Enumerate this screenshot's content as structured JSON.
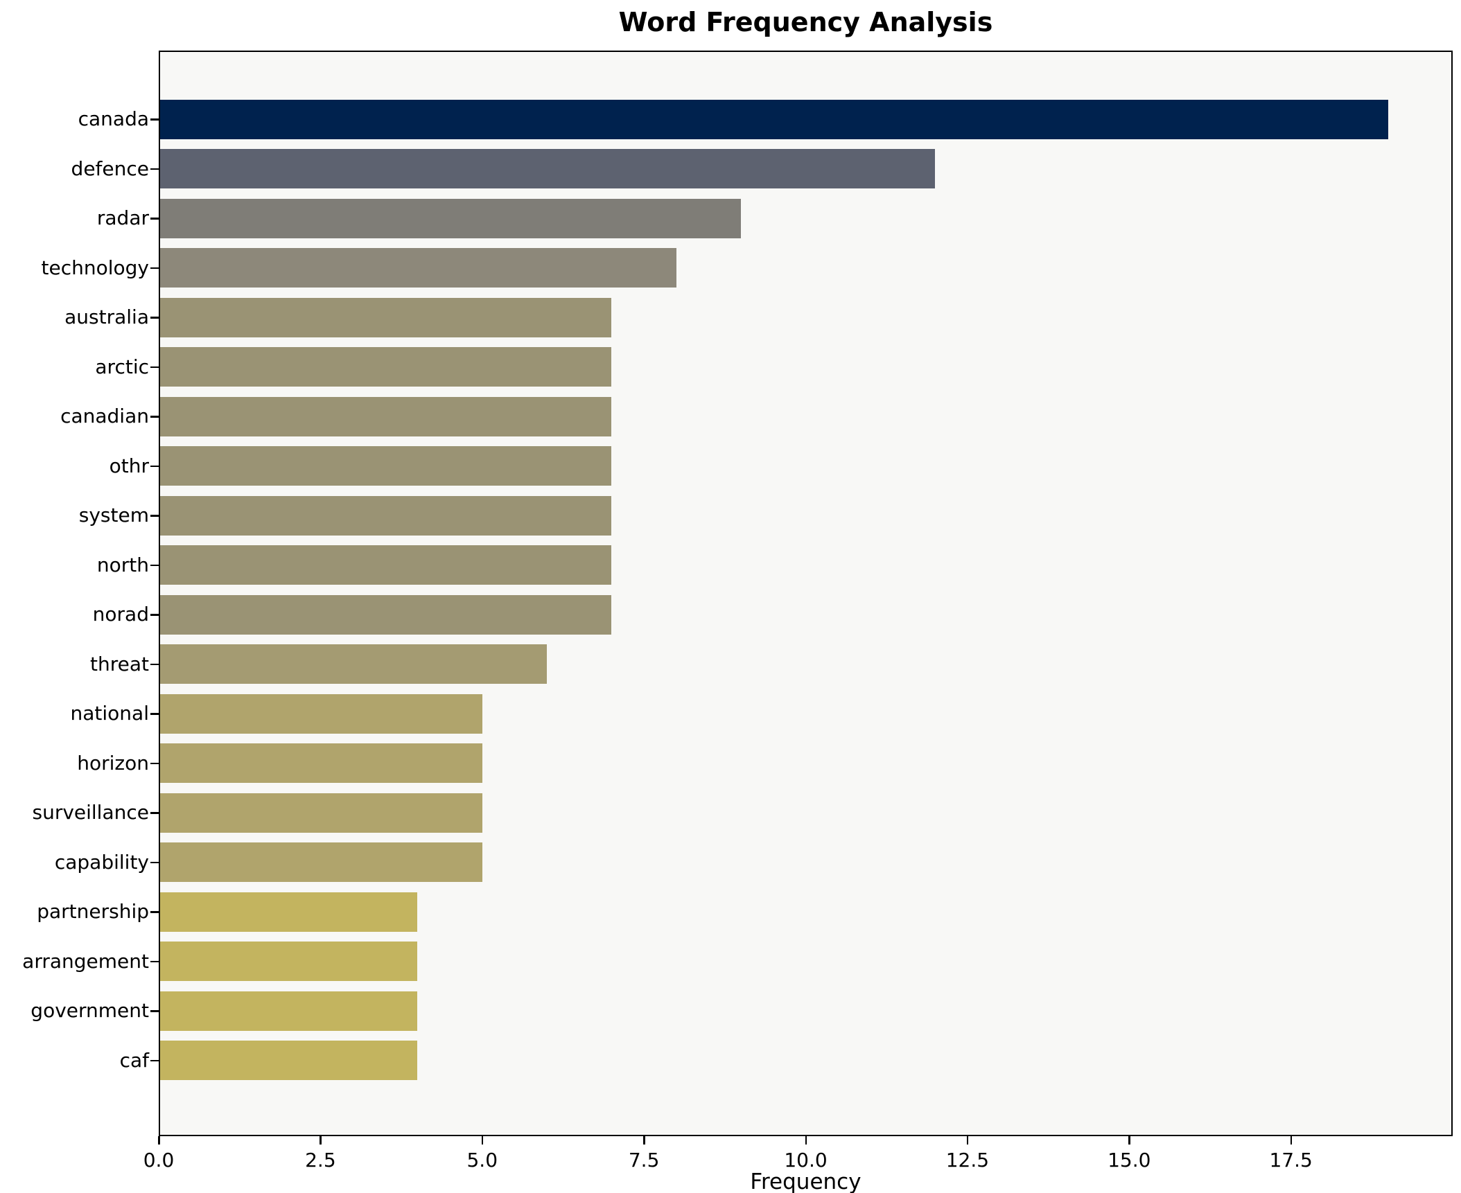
{
  "chart_data": {
    "type": "bar",
    "orientation": "horizontal",
    "title": "Word Frequency Analysis",
    "xlabel": "Frequency",
    "ylabel": "",
    "xlim": [
      0,
      20
    ],
    "grid": false,
    "legend": null,
    "categories": [
      "canada",
      "defence",
      "radar",
      "technology",
      "australia",
      "arctic",
      "canadian",
      "othr",
      "system",
      "north",
      "norad",
      "threat",
      "national",
      "horizon",
      "surveillance",
      "capability",
      "partnership",
      "arrangement",
      "government",
      "caf"
    ],
    "values": [
      19,
      12,
      9,
      8,
      7,
      7,
      7,
      7,
      7,
      7,
      7,
      6,
      5,
      5,
      5,
      5,
      4,
      4,
      4,
      4
    ],
    "bar_colors": [
      "#00224e",
      "#5d6270",
      "#7f7d77",
      "#8d887a",
      "#9a9374",
      "#9a9374",
      "#9a9374",
      "#9a9374",
      "#9a9374",
      "#9a9374",
      "#9a9374",
      "#a49b72",
      "#b0a46c",
      "#b0a46c",
      "#b0a46c",
      "#b0a46c",
      "#c3b45f",
      "#c3b45f",
      "#c3b45f",
      "#c3b45f"
    ],
    "xticks": [
      {
        "value": 0,
        "label": "0.0"
      },
      {
        "value": 2.5,
        "label": "2.5"
      },
      {
        "value": 5,
        "label": "5.0"
      },
      {
        "value": 7.5,
        "label": "7.5"
      },
      {
        "value": 10,
        "label": "10.0"
      },
      {
        "value": 12.5,
        "label": "12.5"
      },
      {
        "value": 15,
        "label": "15.0"
      },
      {
        "value": 17.5,
        "label": "17.5"
      }
    ],
    "plot_background": "#f8f8f6",
    "figure_background": "#ffffff",
    "axis_color": "#000000"
  }
}
